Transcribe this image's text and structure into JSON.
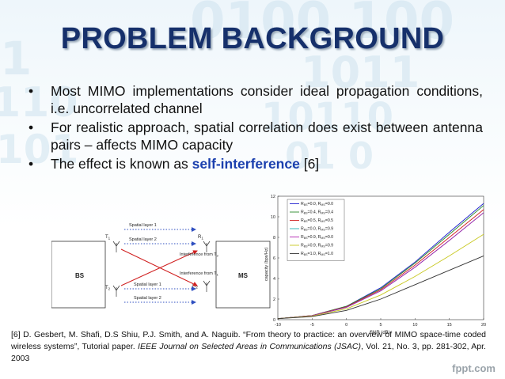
{
  "title": "PROBLEM BACKGROUND",
  "bullets": [
    {
      "text": "Most MIMO implementations consider ideal propagation conditions, i.e. uncorrelated channel"
    },
    {
      "text": "For realistic approach, spatial correlation does exist between antenna pairs – affects MIMO capacity"
    },
    {
      "prefix": "The effect is known as ",
      "highlight": "self-interference",
      "suffix": " [6]"
    }
  ],
  "diagram": {
    "bs": "BS",
    "ms": "MS",
    "t1": "T",
    "t1_sub": "1",
    "t2": "T",
    "t2_sub": "2",
    "r1": "R",
    "r1_sub": "1",
    "r2": "R",
    "r2_sub": "2",
    "layer1_top": "Spatial layer 1",
    "layer2_top": "Spatial layer 2",
    "layer1_bottom": "Spatial layer 1",
    "layer2_bottom": "Spatial layer 2",
    "interf_t2": "Interference from T",
    "interf_t2_sub": "2",
    "interf_t1": "Interference from T",
    "interf_t1_sub": "1"
  },
  "chart_data": {
    "type": "line",
    "xlabel": "SNR (dB)",
    "ylabel": "capacity (bps/Hz)",
    "xlim": [
      -10,
      20
    ],
    "ylim": [
      0,
      12
    ],
    "xticks": [
      -10,
      -5,
      0,
      5,
      10,
      15,
      20
    ],
    "yticks": [
      0,
      2,
      4,
      6,
      8,
      10,
      12
    ],
    "legend_position": "top-left",
    "x": [
      -10,
      -5,
      0,
      5,
      10,
      15,
      20
    ],
    "series": [
      {
        "name": "R_BS=0.0, R_MS=0.0",
        "color": "#1f1fd0",
        "values": [
          0.1,
          0.4,
          1.3,
          3.1,
          5.6,
          8.5,
          11.3
        ]
      },
      {
        "name": "R_BS=0.4, R_MS=0.4",
        "color": "#2a8a2a",
        "values": [
          0.1,
          0.4,
          1.3,
          3.0,
          5.5,
          8.3,
          11.1
        ]
      },
      {
        "name": "R_BS=0.5, R_MS=0.5",
        "color": "#d02020",
        "values": [
          0.1,
          0.4,
          1.25,
          2.9,
          5.3,
          8.0,
          10.7
        ]
      },
      {
        "name": "R_BS=0.0, R_MS=0.9",
        "color": "#20b0b0",
        "values": [
          0.1,
          0.38,
          1.2,
          2.8,
          5.1,
          7.7,
          10.4
        ]
      },
      {
        "name": "R_BS=0.9, R_MS=0.0",
        "color": "#b020b0",
        "values": [
          0.1,
          0.38,
          1.2,
          2.8,
          5.1,
          7.7,
          10.4
        ]
      },
      {
        "name": "R_BS=0.9, R_MS=0.9",
        "color": "#c8c820",
        "values": [
          0.1,
          0.35,
          1.05,
          2.4,
          4.2,
          6.2,
          8.3
        ]
      },
      {
        "name": "R_BS=1.0, R_MS=1.0",
        "color": "#333333",
        "values": [
          0.1,
          0.3,
          0.9,
          2.0,
          3.4,
          4.8,
          6.2
        ]
      }
    ]
  },
  "legend_sym": {
    "r": "R",
    "bs": "BS",
    "ms": "MS"
  },
  "legend_vals": [
    [
      "0.0",
      "0.0"
    ],
    [
      "0.4",
      "0.4"
    ],
    [
      "0.5",
      "0.5"
    ],
    [
      "0.0",
      "0.9"
    ],
    [
      "0.9",
      "0.0"
    ],
    [
      "0.9",
      "0.9"
    ],
    [
      "1.0",
      "1.0"
    ]
  ],
  "reference": {
    "part1": "[6] D. Gesbert, M. Shafi, D.S Shiu, P.J. Smith, and A. Naguib. “From theory to practice: an overview of MIMO space-time coded wireless systems”, Tutorial paper. ",
    "journal": "IEEE Journal on Selected Areas in Communications (JSAC)",
    "part2": ", Vol. 21, No. 3, pp. 281-302, Apr. 2003"
  },
  "footer": "fppt.com"
}
